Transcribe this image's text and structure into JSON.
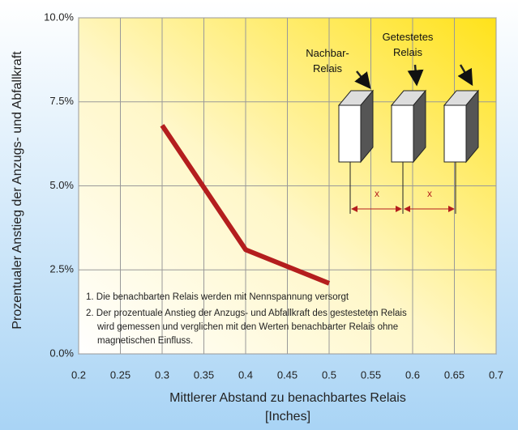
{
  "chart_data": {
    "type": "line",
    "ylabel": "Prozentualer Anstieg der Anzugs- und Abfallkraft",
    "xlabel": [
      "Mittlerer Abstand zu benachbartes Relais",
      "[Inches]"
    ],
    "x": [
      0.3,
      0.4,
      0.5
    ],
    "series": [
      {
        "name": null,
        "color": "#b41e1e",
        "values": [
          6.8,
          3.1,
          2.1
        ]
      }
    ],
    "xlim": [
      0.2,
      0.7
    ],
    "xticks": [
      0.2,
      0.25,
      0.3,
      0.35,
      0.4,
      0.45,
      0.5,
      0.55,
      0.6,
      0.65,
      0.7
    ],
    "ylim": [
      0,
      10
    ],
    "yticks": [
      {
        "value": 0,
        "label": "0.0%"
      },
      {
        "value": 2.5,
        "label": "2.5%"
      },
      {
        "value": 5,
        "label": "5.0%"
      },
      {
        "value": 7.5,
        "label": "7.5%"
      },
      {
        "value": 10,
        "label": "10.0%"
      }
    ],
    "grid": true,
    "annotations": {
      "notes": [
        "1. Die benachbarten Relais werden mit Nennspannung versorgt",
        "2. Der prozentuale Anstieg der Anzugs- und Abfallkraft des gestesteten Relais",
        "wird gemessen und verglichen mit den Werten benachbarter Relais ohne",
        "magnetischen Einfluss."
      ],
      "neighbor": [
        "Nachbar-",
        "Relais"
      ],
      "tested": [
        "Getestetes",
        "Relais"
      ],
      "distance": [
        "x",
        "x"
      ]
    }
  }
}
